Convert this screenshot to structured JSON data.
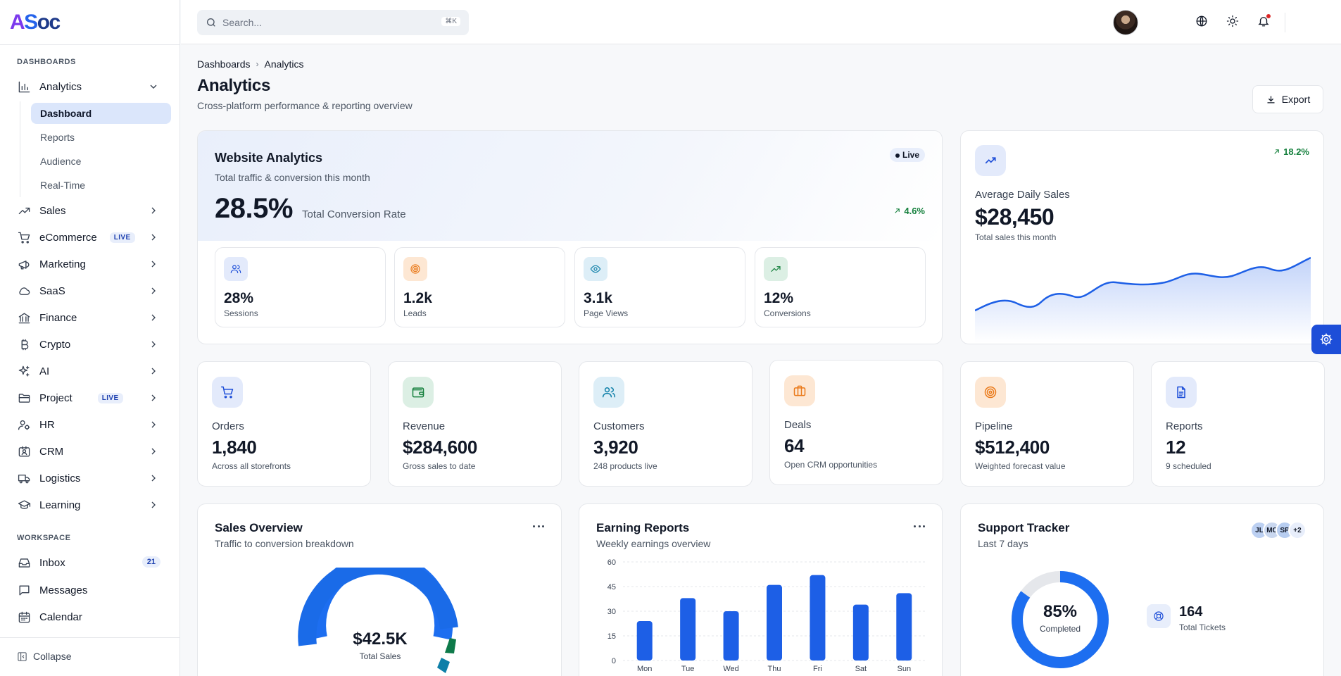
{
  "app": {
    "logo": "ASoc"
  },
  "sidebar": {
    "section_dashboards": "DASHBOARDS",
    "section_workspace": "WORKSPACE",
    "analytics_label": "Analytics",
    "analytics_sub": [
      "Dashboard",
      "Reports",
      "Audience",
      "Real-Time"
    ],
    "items": [
      {
        "label": "Sales",
        "icon": "trend-icon"
      },
      {
        "label": "eCommerce",
        "icon": "cart-icon",
        "badge": "LIVE"
      },
      {
        "label": "Marketing",
        "icon": "megaphone-icon"
      },
      {
        "label": "SaaS",
        "icon": "cloud-icon"
      },
      {
        "label": "Finance",
        "icon": "bank-icon"
      },
      {
        "label": "Crypto",
        "icon": "bitcoin-icon"
      },
      {
        "label": "AI",
        "icon": "sparkles-icon"
      },
      {
        "label": "Project",
        "icon": "folder-icon",
        "badge": "LIVE"
      },
      {
        "label": "HR",
        "icon": "users-icon"
      },
      {
        "label": "CRM",
        "icon": "id-card-icon"
      },
      {
        "label": "Logistics",
        "icon": "truck-icon"
      },
      {
        "label": "Learning",
        "icon": "graduation-icon"
      }
    ],
    "workspace": [
      {
        "label": "Inbox",
        "icon": "inbox-icon",
        "count": "21"
      },
      {
        "label": "Messages",
        "icon": "message-icon"
      },
      {
        "label": "Calendar",
        "icon": "calendar-icon"
      }
    ],
    "collapse_label": "Collapse"
  },
  "topbar": {
    "search_placeholder": "Search...",
    "search_shortcut": "⌘K"
  },
  "header": {
    "breadcrumb": [
      "Dashboards",
      "Analytics"
    ],
    "title": "Analytics",
    "subtitle": "Cross-platform performance & reporting overview",
    "export_label": "Export"
  },
  "website_analytics": {
    "title": "Website Analytics",
    "subtitle": "Total traffic & conversion this month",
    "live": "Live",
    "rate": "28.5%",
    "rate_label": "Total Conversion Rate",
    "trend": "4.6%",
    "metrics": [
      {
        "value": "28%",
        "label": "Sessions"
      },
      {
        "value": "1.2k",
        "label": "Leads"
      },
      {
        "value": "3.1k",
        "label": "Page Views"
      },
      {
        "value": "12%",
        "label": "Conversions"
      }
    ]
  },
  "avg_sales": {
    "label": "Average Daily Sales",
    "value": "$28,450",
    "sub": "Total sales this month",
    "trend": "18.2%"
  },
  "stats": [
    {
      "label": "Orders",
      "value": "1,840",
      "sub": "Across all storefronts"
    },
    {
      "label": "Revenue",
      "value": "$284,600",
      "sub": "Gross sales to date"
    },
    {
      "label": "Customers",
      "value": "3,920",
      "sub": "248 products live"
    },
    {
      "label": "Deals",
      "value": "64",
      "sub": "Open CRM opportunities"
    },
    {
      "label": "Pipeline",
      "value": "$512,400",
      "sub": "Weighted forecast value"
    },
    {
      "label": "Reports",
      "value": "12",
      "sub": "9 scheduled"
    }
  ],
  "sales_overview": {
    "title": "Sales Overview",
    "subtitle": "Traffic to conversion breakdown",
    "total": "$42.5K",
    "total_label": "Total Sales"
  },
  "earning_reports": {
    "title": "Earning Reports",
    "subtitle": "Weekly earnings overview"
  },
  "support_tracker": {
    "title": "Support Tracker",
    "subtitle": "Last 7 days",
    "avatars": [
      "JL",
      "MC",
      "SP",
      "+2"
    ],
    "completed": "85%",
    "completed_label": "Completed",
    "completed_fraction": 0.85,
    "tickets": "164",
    "tickets_label": "Total Tickets"
  },
  "chart_data": {
    "type": "bar",
    "categories": [
      "Mon",
      "Tue",
      "Wed",
      "Thu",
      "Fri",
      "Sat",
      "Sun"
    ],
    "values": [
      24,
      38,
      30,
      46,
      52,
      34,
      41
    ],
    "ylim": [
      0,
      60
    ],
    "yticks": [
      "0",
      "15",
      "30",
      "45",
      "60"
    ],
    "grid": true
  }
}
